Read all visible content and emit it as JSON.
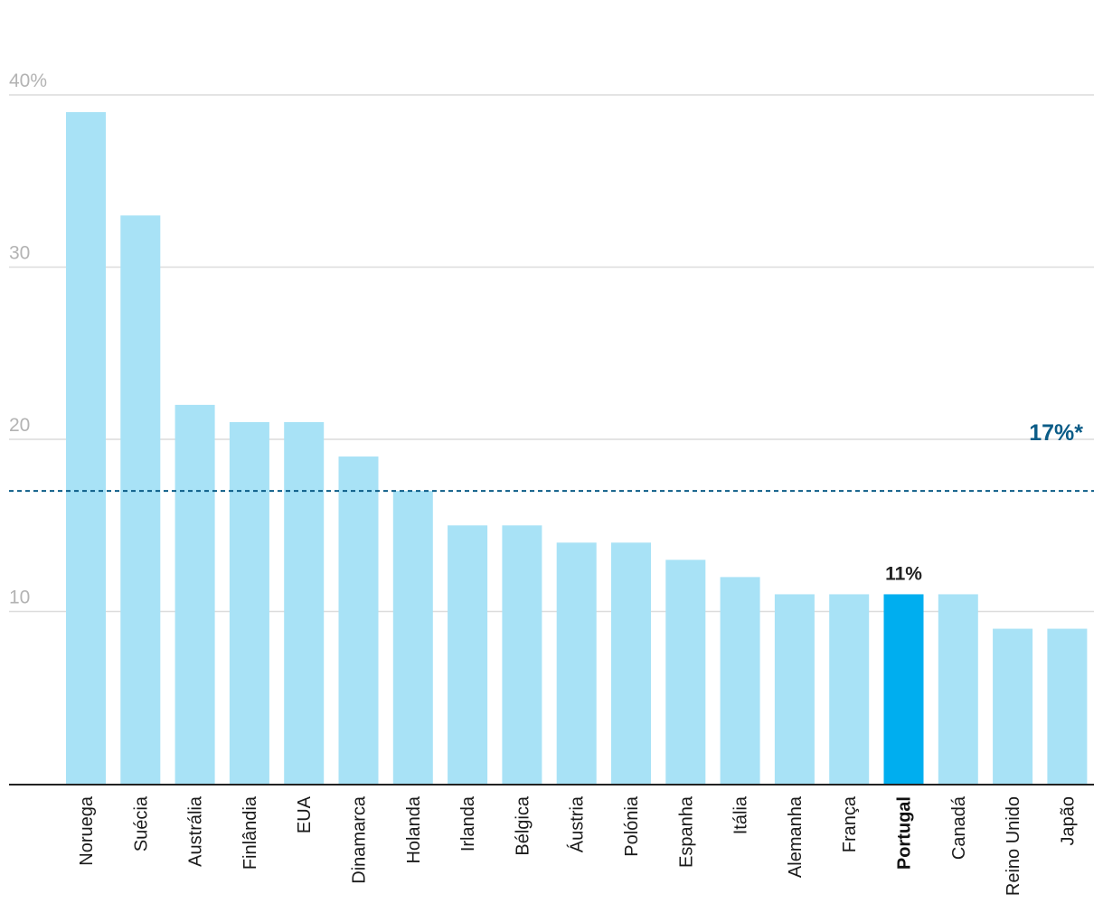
{
  "chart_data": {
    "type": "bar",
    "categories": [
      "Noruega",
      "Suécia",
      "Austrália",
      "Finlândia",
      "EUA",
      "Dinamarca",
      "Holanda",
      "Irlanda",
      "Bélgica",
      "Áustria",
      "Polónia",
      "Espanha",
      "Itália",
      "Alemanha",
      "França",
      "Portugal",
      "Canadá",
      "Reino Unido",
      "Japão"
    ],
    "values": [
      39,
      33,
      22,
      21,
      21,
      19,
      17,
      15,
      15,
      14,
      14,
      13,
      12,
      11,
      11,
      11,
      11,
      9,
      9
    ],
    "ylim": [
      0,
      40
    ],
    "y_ticks": [
      {
        "value": 40,
        "label": "40%"
      },
      {
        "value": 30,
        "label": "30"
      },
      {
        "value": 20,
        "label": "20"
      },
      {
        "value": 10,
        "label": "10"
      }
    ],
    "grid": true,
    "highlight": {
      "category": "Portugal",
      "data_label": "11%"
    },
    "reference_line": {
      "value": 17,
      "label": "17%*",
      "style": "dashed"
    },
    "colors": {
      "bar": "#a8e2f6",
      "highlight_bar": "#00aeef",
      "reference": "#0b5c87",
      "grid": "#dcdcdc",
      "axis": "#222222"
    }
  }
}
